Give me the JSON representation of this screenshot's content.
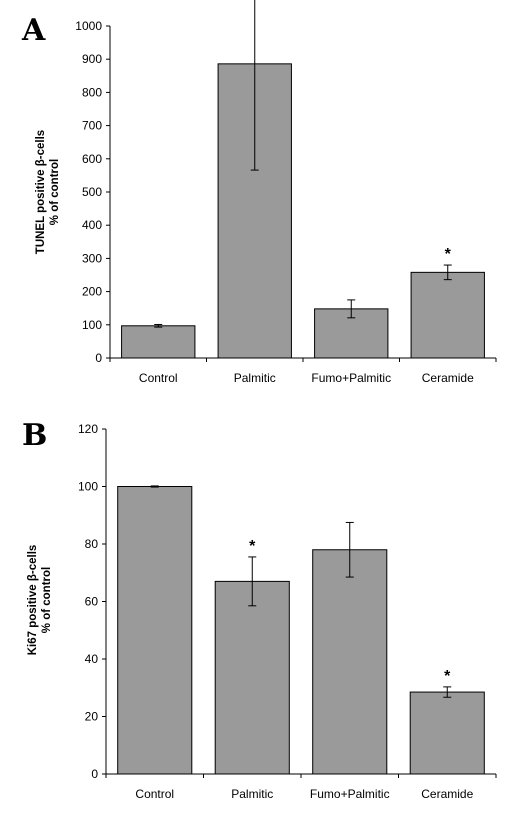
{
  "chart_data": [
    {
      "type": "bar",
      "panel": "A",
      "ylabel_line1": "TUNEL positive β-cells",
      "ylabel_line2": "% of control",
      "ylim": [
        0,
        1000
      ],
      "yticks": [
        0,
        100,
        200,
        300,
        400,
        500,
        600,
        700,
        800,
        900,
        1000
      ],
      "categories": [
        "Control",
        "Palmitic",
        "Fumo+Palmitic",
        "Ceramide"
      ],
      "values": [
        97,
        886,
        148,
        258
      ],
      "error": [
        4,
        320,
        27,
        22
      ],
      "significant": [
        false,
        true,
        false,
        true
      ],
      "significance_marker": "*",
      "bar_color": "#9a9a9a"
    },
    {
      "type": "bar",
      "panel": "B",
      "ylabel_line1": "Ki67 positive β-cells",
      "ylabel_line2": "% of control",
      "ylim": [
        0,
        120
      ],
      "yticks": [
        0,
        20,
        40,
        60,
        80,
        100,
        120
      ],
      "categories": [
        "Control",
        "Palmitic",
        "Fumo+Palmitic",
        "Ceramide"
      ],
      "values": [
        100,
        67,
        78,
        28.5
      ],
      "error": [
        0.2,
        8.5,
        9.5,
        1.8
      ],
      "significant": [
        false,
        true,
        false,
        true
      ],
      "significance_marker": "*",
      "bar_color": "#9a9a9a"
    }
  ]
}
